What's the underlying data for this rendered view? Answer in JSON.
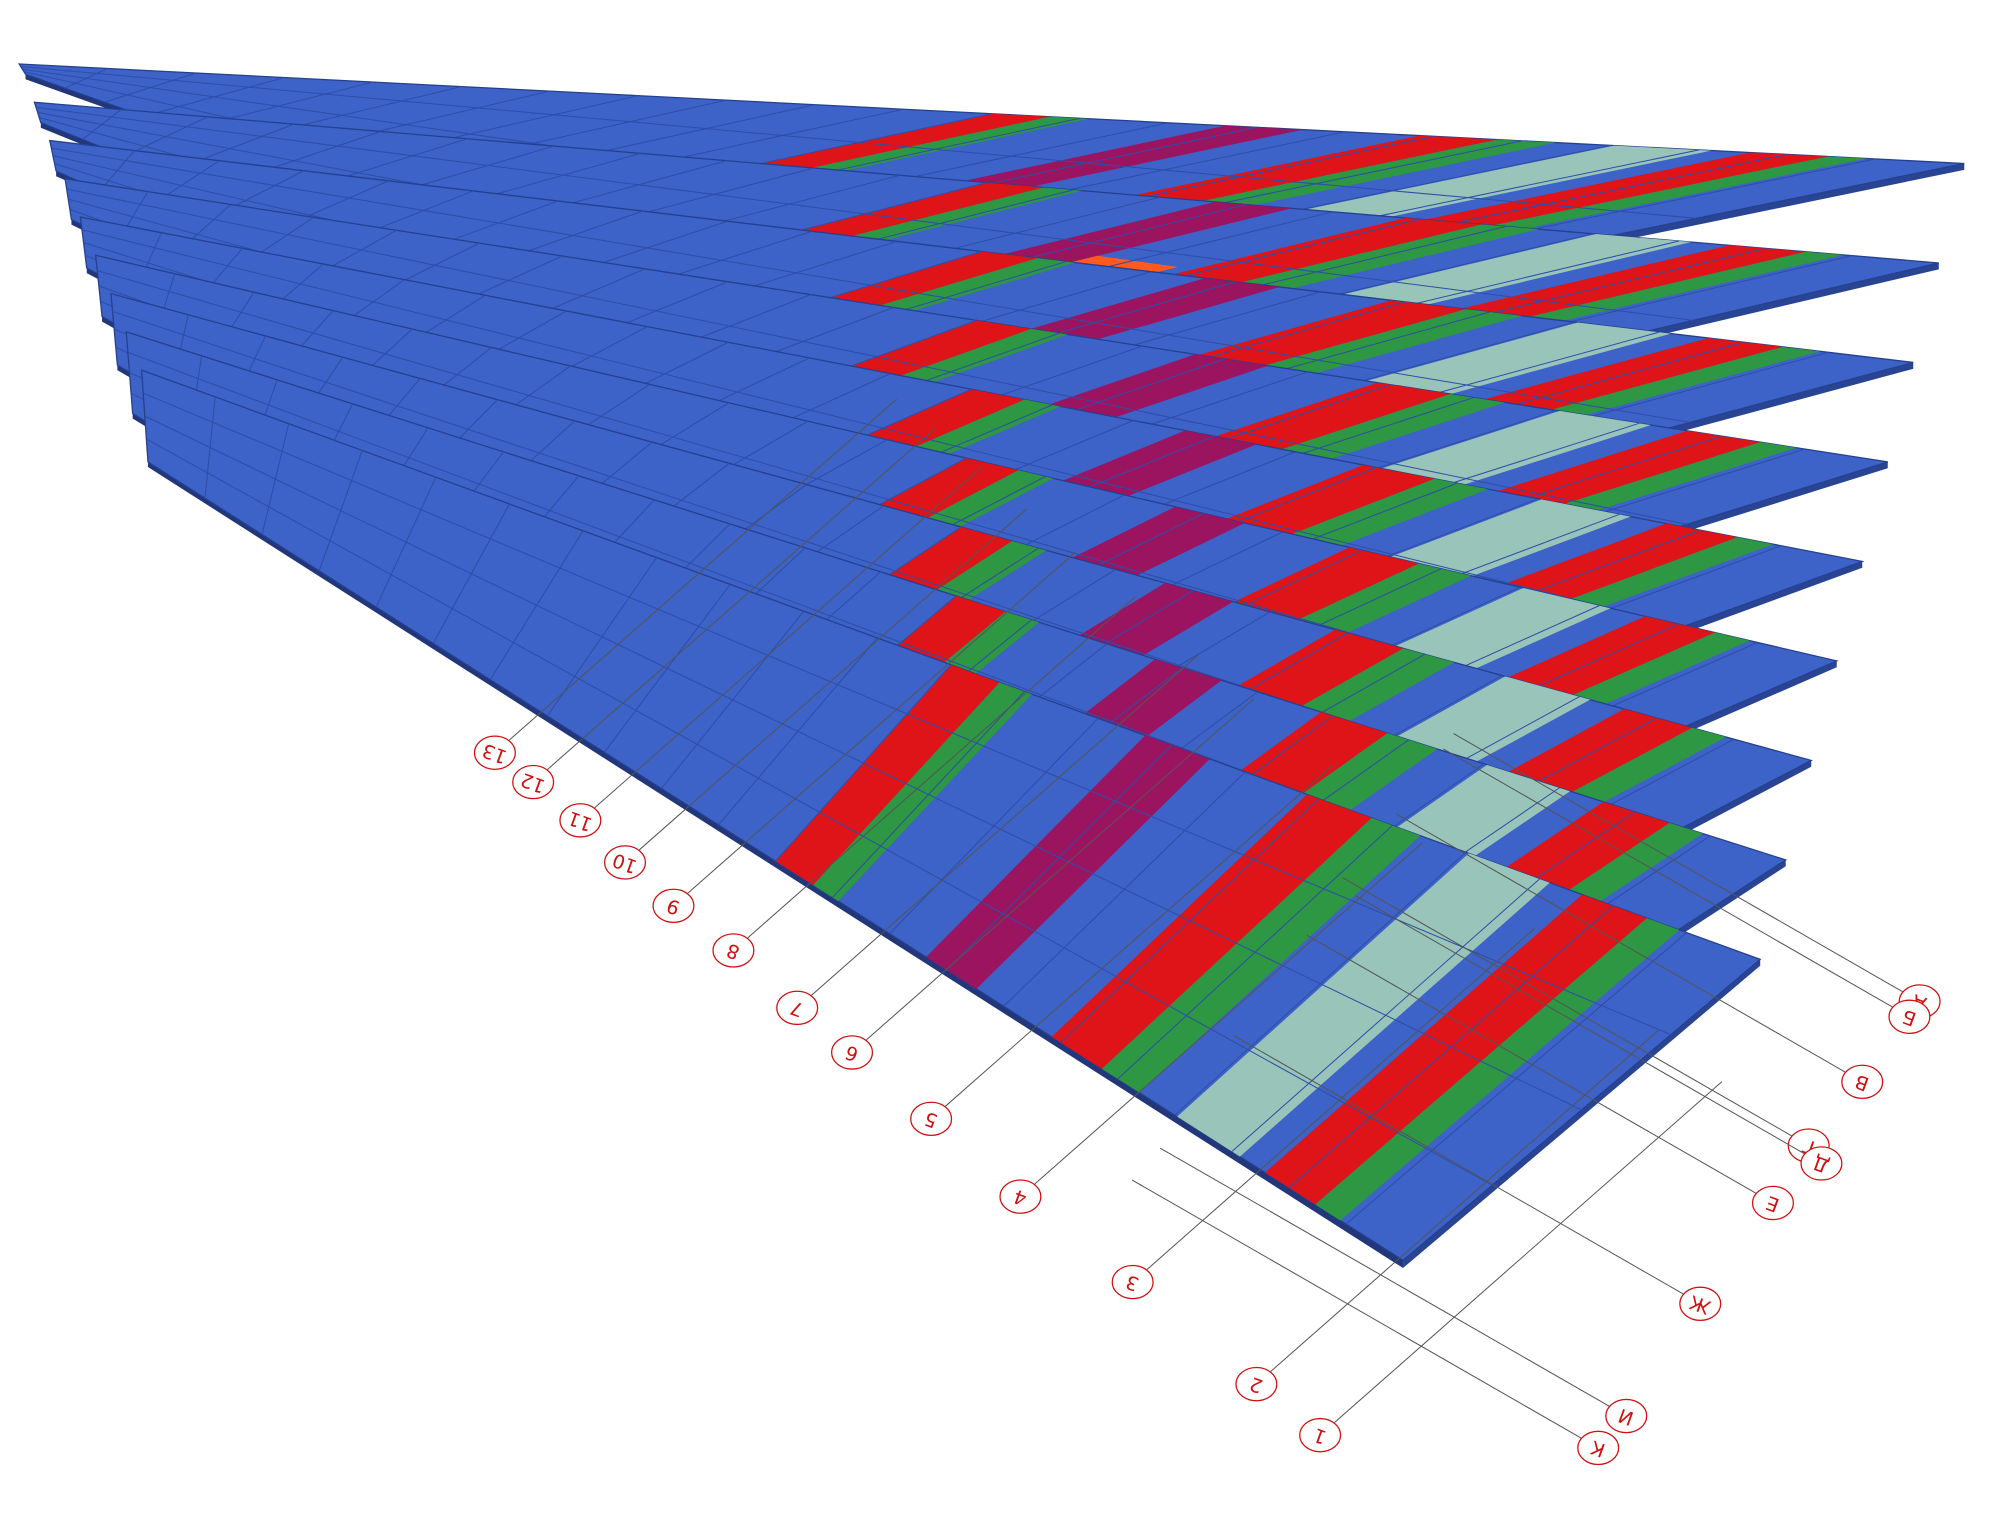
{
  "axes": {
    "numbered": [
      "1",
      "2",
      "3",
      "4",
      "5",
      "6",
      "7",
      "8",
      "9",
      "10",
      "11",
      "12",
      "13"
    ],
    "lettered": [
      "А",
      "Б",
      "В",
      "Г",
      "Д",
      "Е",
      "Ж",
      "И",
      "К"
    ]
  }
}
